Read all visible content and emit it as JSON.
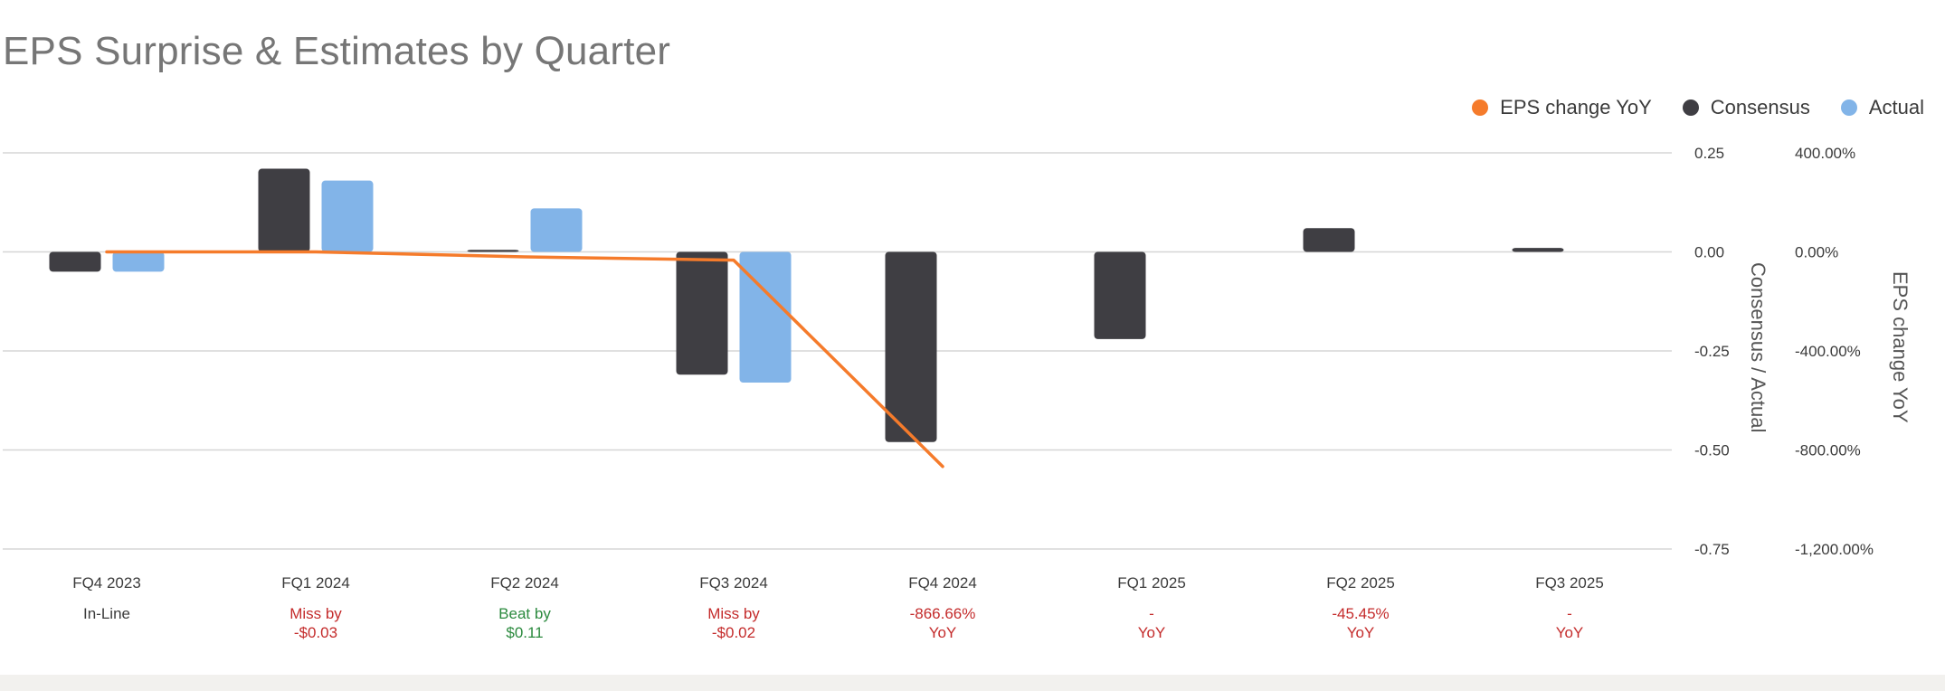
{
  "chart_data": {
    "type": "bar",
    "title": "EPS Surprise & Estimates by Quarter",
    "categories": [
      "FQ4 2023",
      "FQ1 2024",
      "FQ2 2024",
      "FQ3 2024",
      "FQ4 2024",
      "FQ1 2025",
      "FQ2 2025",
      "FQ3 2025"
    ],
    "series": [
      {
        "name": "Consensus",
        "kind": "bar",
        "color": "#3f3e43",
        "values": [
          -0.05,
          0.21,
          0.005,
          -0.31,
          -0.48,
          -0.22,
          0.06,
          0.01
        ]
      },
      {
        "name": "Actual",
        "kind": "bar",
        "color": "#82b4e8",
        "values": [
          -0.05,
          0.18,
          0.11,
          -0.33,
          null,
          null,
          null,
          null
        ]
      },
      {
        "name": "EPS change YoY",
        "kind": "line",
        "axis": "right",
        "color": "#f57b2b",
        "values": [
          0.0,
          0.0,
          -20.0,
          -33.33,
          -866.66,
          null,
          null,
          null
        ]
      }
    ],
    "y_left": {
      "label": "Consensus / Actual",
      "ylim": [
        -0.75,
        0.25
      ],
      "ticks": [
        0.25,
        0.0,
        -0.25,
        -0.5,
        -0.75
      ],
      "tick_labels": [
        "0.25",
        "0.00",
        "-0.25",
        "-0.50",
        "-0.75"
      ]
    },
    "y_right": {
      "label": "EPS change YoY",
      "ylim": [
        -1200,
        400
      ],
      "ticks": [
        400,
        0,
        -400,
        -800,
        -1200
      ],
      "tick_labels": [
        "400.00%",
        "0.00%",
        "-400.00%",
        "-800.00%",
        "-1,200.00%"
      ]
    },
    "surprise_labels": [
      {
        "line1": "In-Line",
        "line2": "",
        "tone": "neutral"
      },
      {
        "line1": "Miss by",
        "line2": "-$0.03",
        "tone": "negative"
      },
      {
        "line1": "Beat by",
        "line2": "$0.11",
        "tone": "positive"
      },
      {
        "line1": "Miss by",
        "line2": "-$0.02",
        "tone": "negative"
      },
      {
        "line1": "-866.66%",
        "line2": "YoY",
        "tone": "negative"
      },
      {
        "line1": "-",
        "line2": "YoY",
        "tone": "negative"
      },
      {
        "line1": "-45.45%",
        "line2": "YoY",
        "tone": "negative"
      },
      {
        "line1": "-",
        "line2": "YoY",
        "tone": "negative"
      }
    ],
    "tone_colors": {
      "neutral": "#3b3b3b",
      "negative": "#c42b2b",
      "positive": "#2b8a3e"
    },
    "grid": true,
    "legend_position": "top-right"
  },
  "legend": [
    {
      "label": "EPS change YoY",
      "color": "#f57b2b"
    },
    {
      "label": "Consensus",
      "color": "#3f3e43"
    },
    {
      "label": "Actual",
      "color": "#82b4e8"
    }
  ]
}
